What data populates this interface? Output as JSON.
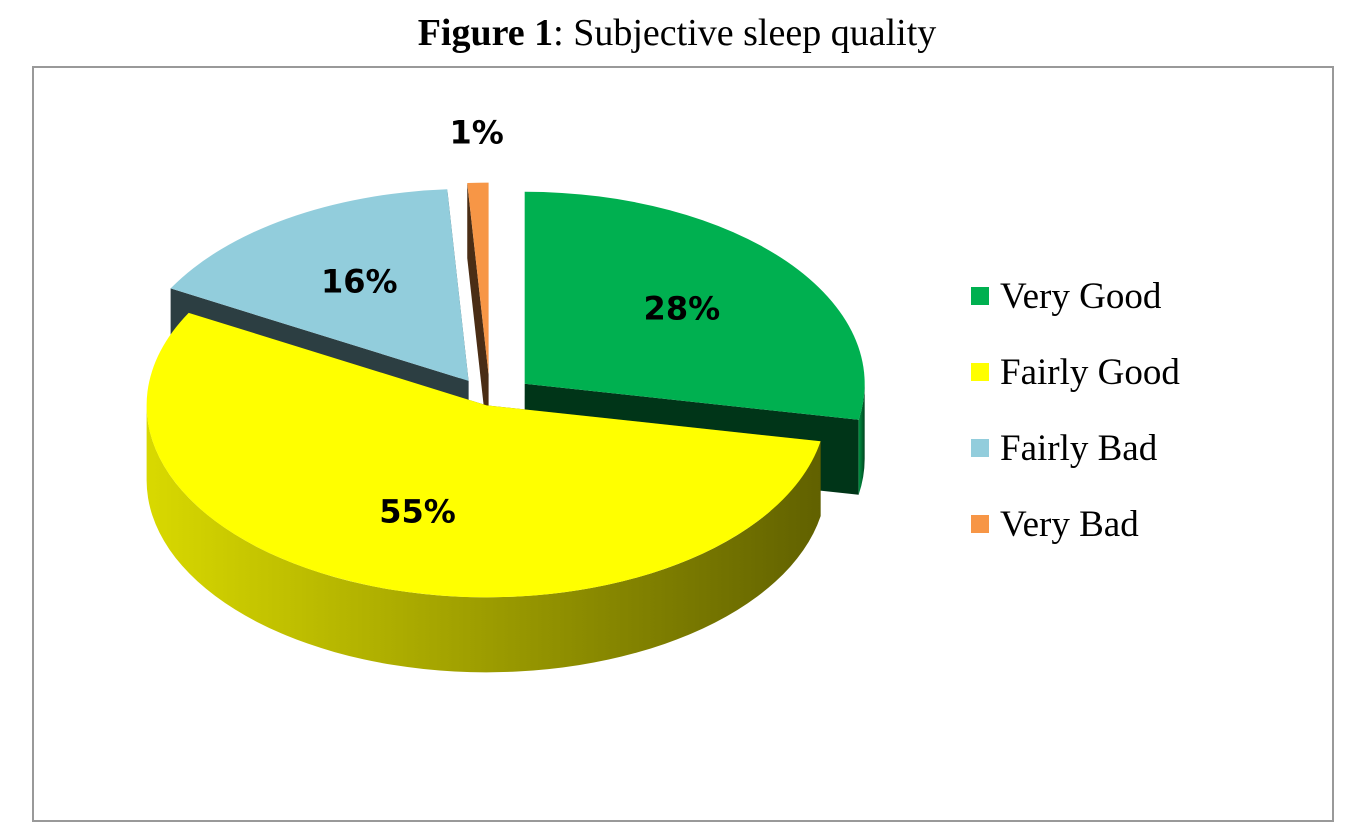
{
  "chart_data": {
    "type": "pie3d",
    "figure_label": "Figure 1",
    "title": ": Subjective sleep quality",
    "categories": [
      "Very Good",
      "Fairly Good",
      "Fairly Bad",
      "Very Bad"
    ],
    "values": [
      28,
      55,
      16,
      1
    ],
    "value_labels": [
      "28%",
      "55%",
      "16%",
      "1%"
    ],
    "colors": [
      "#00b050",
      "#ffff00",
      "#92cddc",
      "#f79646"
    ],
    "legend": "right"
  }
}
